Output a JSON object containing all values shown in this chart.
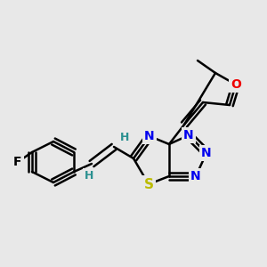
{
  "bg_color": "#e8e8e8",
  "bond_color": "#000000",
  "bond_width": 1.8,
  "atom_colors": {
    "N": "#0000ee",
    "S": "#bbbb00",
    "O": "#ee0000",
    "F": "#000000",
    "H": "#2a9090",
    "C": "#000000"
  },
  "font_size": 10,
  "fig_size": [
    3.0,
    3.0
  ],
  "dpi": 100
}
